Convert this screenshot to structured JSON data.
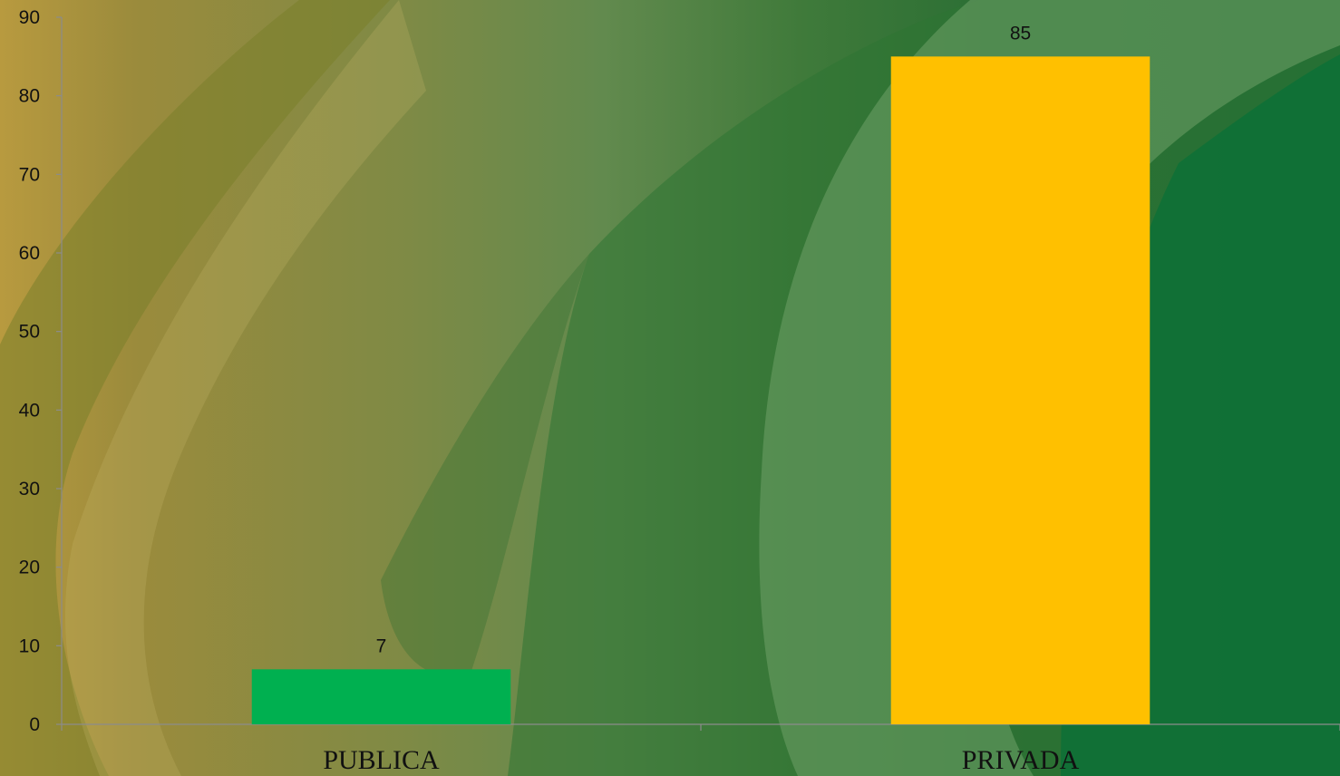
{
  "chart_data": {
    "type": "bar",
    "title": "",
    "xlabel": "",
    "ylabel": "",
    "categories": [
      "PUBLICA",
      "PRIVADA"
    ],
    "values": [
      7,
      85
    ],
    "data_labels": [
      "7",
      "85"
    ],
    "bar_colors": [
      "#00b050",
      "#ffc000"
    ],
    "ylim": [
      0,
      90
    ],
    "ytick_step": 10,
    "yticks": [
      "0",
      "10",
      "20",
      "30",
      "40",
      "50",
      "60",
      "70",
      "80",
      "90"
    ],
    "grid": false,
    "legend": "none"
  }
}
